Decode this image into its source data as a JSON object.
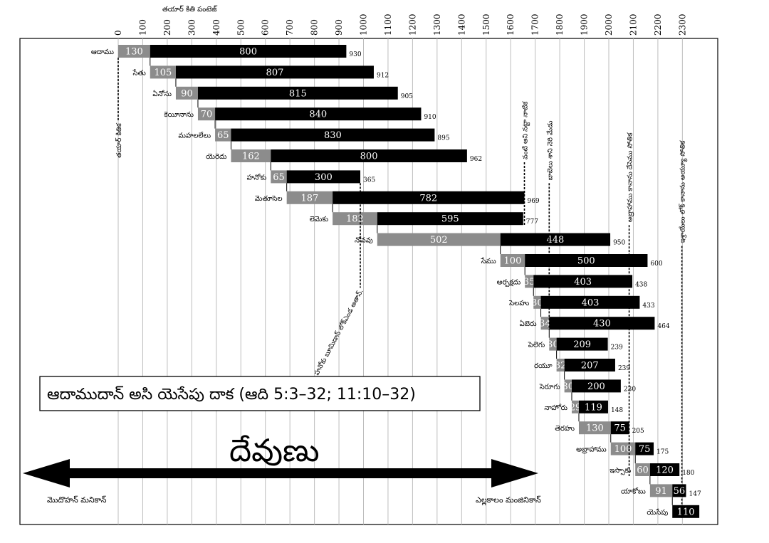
{
  "chart_data": {
    "type": "bar",
    "subtype": "stacked-horizontal-timeline",
    "axis_title": "తయార్ కితి పంటెజ్",
    "x_ticks": [
      0,
      100,
      200,
      300,
      400,
      500,
      600,
      700,
      800,
      900,
      1000,
      1100,
      1200,
      1300,
      1400,
      1500,
      1600,
      1700,
      1800,
      1900,
      2000,
      2100,
      2200,
      2300
    ],
    "xlim": [
      0,
      2350
    ],
    "grid": true,
    "series": [
      {
        "name": "",
        "color": "#8c8c8c"
      },
      {
        "name": "",
        "color": "#000000"
      }
    ],
    "rows": [
      {
        "name": "ఆదాము",
        "start": 0,
        "first": 130,
        "rest": 800,
        "total": 930
      },
      {
        "name": "సేతు",
        "start": 130,
        "first": 105,
        "rest": 807,
        "total": 912
      },
      {
        "name": "ఏనోసు",
        "start": 235,
        "first": 90,
        "rest": 815,
        "total": 905
      },
      {
        "name": "కెయీనాను",
        "start": 325,
        "first": 70,
        "rest": 840,
        "total": 910
      },
      {
        "name": "మహలలేలు",
        "start": 395,
        "first": 65,
        "rest": 830,
        "total": 895
      },
      {
        "name": "యెరెదు",
        "start": 460,
        "first": 162,
        "rest": 800,
        "total": 962
      },
      {
        "name": "హనోకు",
        "start": 622,
        "first": 65,
        "rest": 300,
        "total": 365
      },
      {
        "name": "మెతూసెల",
        "start": 687,
        "first": 187,
        "rest": 782,
        "total": 969
      },
      {
        "name": "లెమెకు",
        "start": 874,
        "first": 182,
        "rest": 595,
        "total": 777
      },
      {
        "name": "నోవవు",
        "start": 1056,
        "first": 502,
        "rest": 448,
        "total": 950
      },
      {
        "name": "సేము",
        "start": 1558,
        "first": 100,
        "rest": 500,
        "total": 600
      },
      {
        "name": "అర్పక్షదు",
        "start": 1658,
        "first": 35,
        "rest": 403,
        "total": 438
      },
      {
        "name": "సెలహు",
        "start": 1693,
        "first": 30,
        "rest": 403,
        "total": 433
      },
      {
        "name": "ఏబెరు",
        "start": 1723,
        "first": 34,
        "rest": 430,
        "total": 464
      },
      {
        "name": "పెలెగు",
        "start": 1757,
        "first": 30,
        "rest": 209,
        "total": 239
      },
      {
        "name": "రయూ",
        "start": 1787,
        "first": 32,
        "rest": 207,
        "total": 239
      },
      {
        "name": "సెరూగు",
        "start": 1819,
        "first": 30,
        "rest": 200,
        "total": 230
      },
      {
        "name": "నాహోరు",
        "start": 1849,
        "first": 29,
        "rest": 119,
        "total": 148
      },
      {
        "name": "తెరహు",
        "start": 1878,
        "first": 130,
        "rest": 75,
        "total": 205
      },
      {
        "name": "అబ్రాహాము",
        "start": 2008,
        "first": 100,
        "rest": 75,
        "total": 175
      },
      {
        "name": "ఇస్సాకు",
        "start": 2108,
        "first": 60,
        "rest": 120,
        "total": 180
      },
      {
        "name": "యాకోబు",
        "start": 2168,
        "first": 91,
        "rest": 56,
        "total": 147
      },
      {
        "name": "యెసేపు",
        "start": 2259,
        "first": null,
        "rest": 110,
        "total": null
      }
    ],
    "annotations": [
      {
        "text": "తయార్ కితిక",
        "x": 0,
        "from_row": 0,
        "to_row": 3,
        "side": "below"
      },
      {
        "text": "హనోకు బూమిడాన్ లోక్ఎండ అతాన్.",
        "x": 987,
        "from_row": 6,
        "to_row": 11,
        "side": "below"
      },
      {
        "text": "వంటి ఆని నట్టా నాటిక",
        "x": 1656,
        "from_row": 5,
        "to_row": 8,
        "side": "above"
      },
      {
        "text": "బాబెలు శాని నెరి మేడు",
        "x": 1757,
        "from_row": 6,
        "to_row": 13,
        "side": "above"
      },
      {
        "text": "అబ్రాహాము కానాను దేసెము సోతిక",
        "x": 2083,
        "from_row": 8,
        "to_row": 20,
        "side": "above"
      },
      {
        "text": "ఇశ్రాయేలు లోక్ కానాను అయ్యూ సోతిక",
        "x": 2298,
        "from_row": 9,
        "to_row": 22,
        "side": "above"
      }
    ]
  },
  "title_box": "ఆదాముదాన్ అసి యెసేపు దాక (ఆది 5:3–32; 11:10–32)",
  "god_label": "దేవుణు",
  "arrow_left_label": "మొదొహన్ మనికాన్",
  "arrow_right_label": "ఎల్లకాలం మంజినికాన్"
}
